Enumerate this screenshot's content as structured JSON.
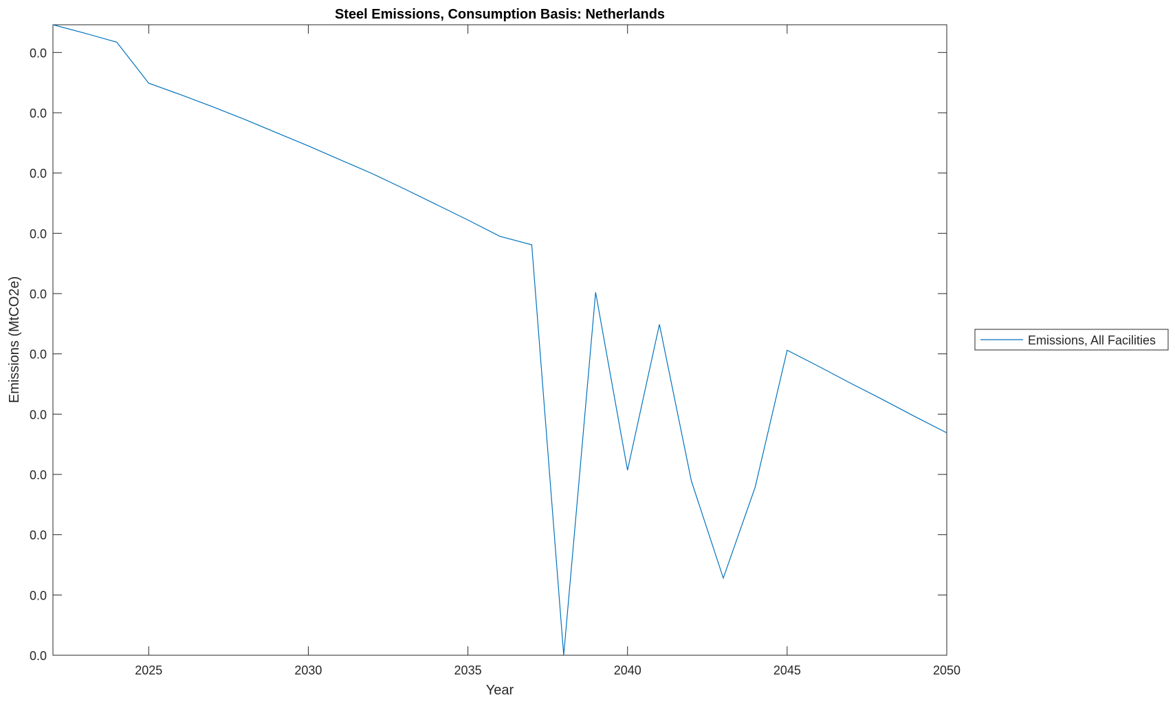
{
  "chart_data": {
    "type": "line",
    "title": "Steel Emissions, Consumption Basis: Netherlands",
    "xlabel": "Year",
    "ylabel": "Emissions (MtCO2e)",
    "xlim": [
      2022,
      2050
    ],
    "ylim": [
      0,
      0.01046
    ],
    "xticks": [
      2025,
      2030,
      2035,
      2040,
      2045,
      2050
    ],
    "xtick_labels": [
      "2025",
      "2030",
      "2035",
      "2040",
      "2045",
      "2050"
    ],
    "yticks": [
      0,
      0.001,
      0.002,
      0.003,
      0.004,
      0.005,
      0.006,
      0.007,
      0.008,
      0.009,
      0.01
    ],
    "ytick_labels": [
      "0.0",
      "0.0",
      "0.0",
      "0.0",
      "0.0",
      "0.0",
      "0.0",
      "0.0",
      "0.0",
      "0.0",
      "0.0"
    ],
    "grid": false,
    "legend_placement": "outside-right",
    "series": [
      {
        "name": "Emissions, All Facilities",
        "color": "#0072BD",
        "x": [
          2022,
          2023,
          2024,
          2025,
          2026,
          2027,
          2028,
          2029,
          2030,
          2031,
          2032,
          2033,
          2034,
          2035,
          2036,
          2037,
          2038,
          2039,
          2040,
          2041,
          2042,
          2043,
          2044,
          2045,
          2046,
          2047,
          2048,
          2049,
          2050
        ],
        "y": [
          0.01046,
          0.01032,
          0.01017,
          0.00949,
          0.0093,
          0.0091,
          0.00889,
          0.00867,
          0.00845,
          0.00822,
          0.00799,
          0.00774,
          0.00748,
          0.00722,
          0.00695,
          0.00681,
          0.0,
          0.00602,
          0.00307,
          0.00549,
          0.00289,
          0.00128,
          0.00279,
          0.00506,
          0.00479,
          0.00451,
          0.00424,
          0.00396,
          0.00369
        ]
      }
    ]
  }
}
